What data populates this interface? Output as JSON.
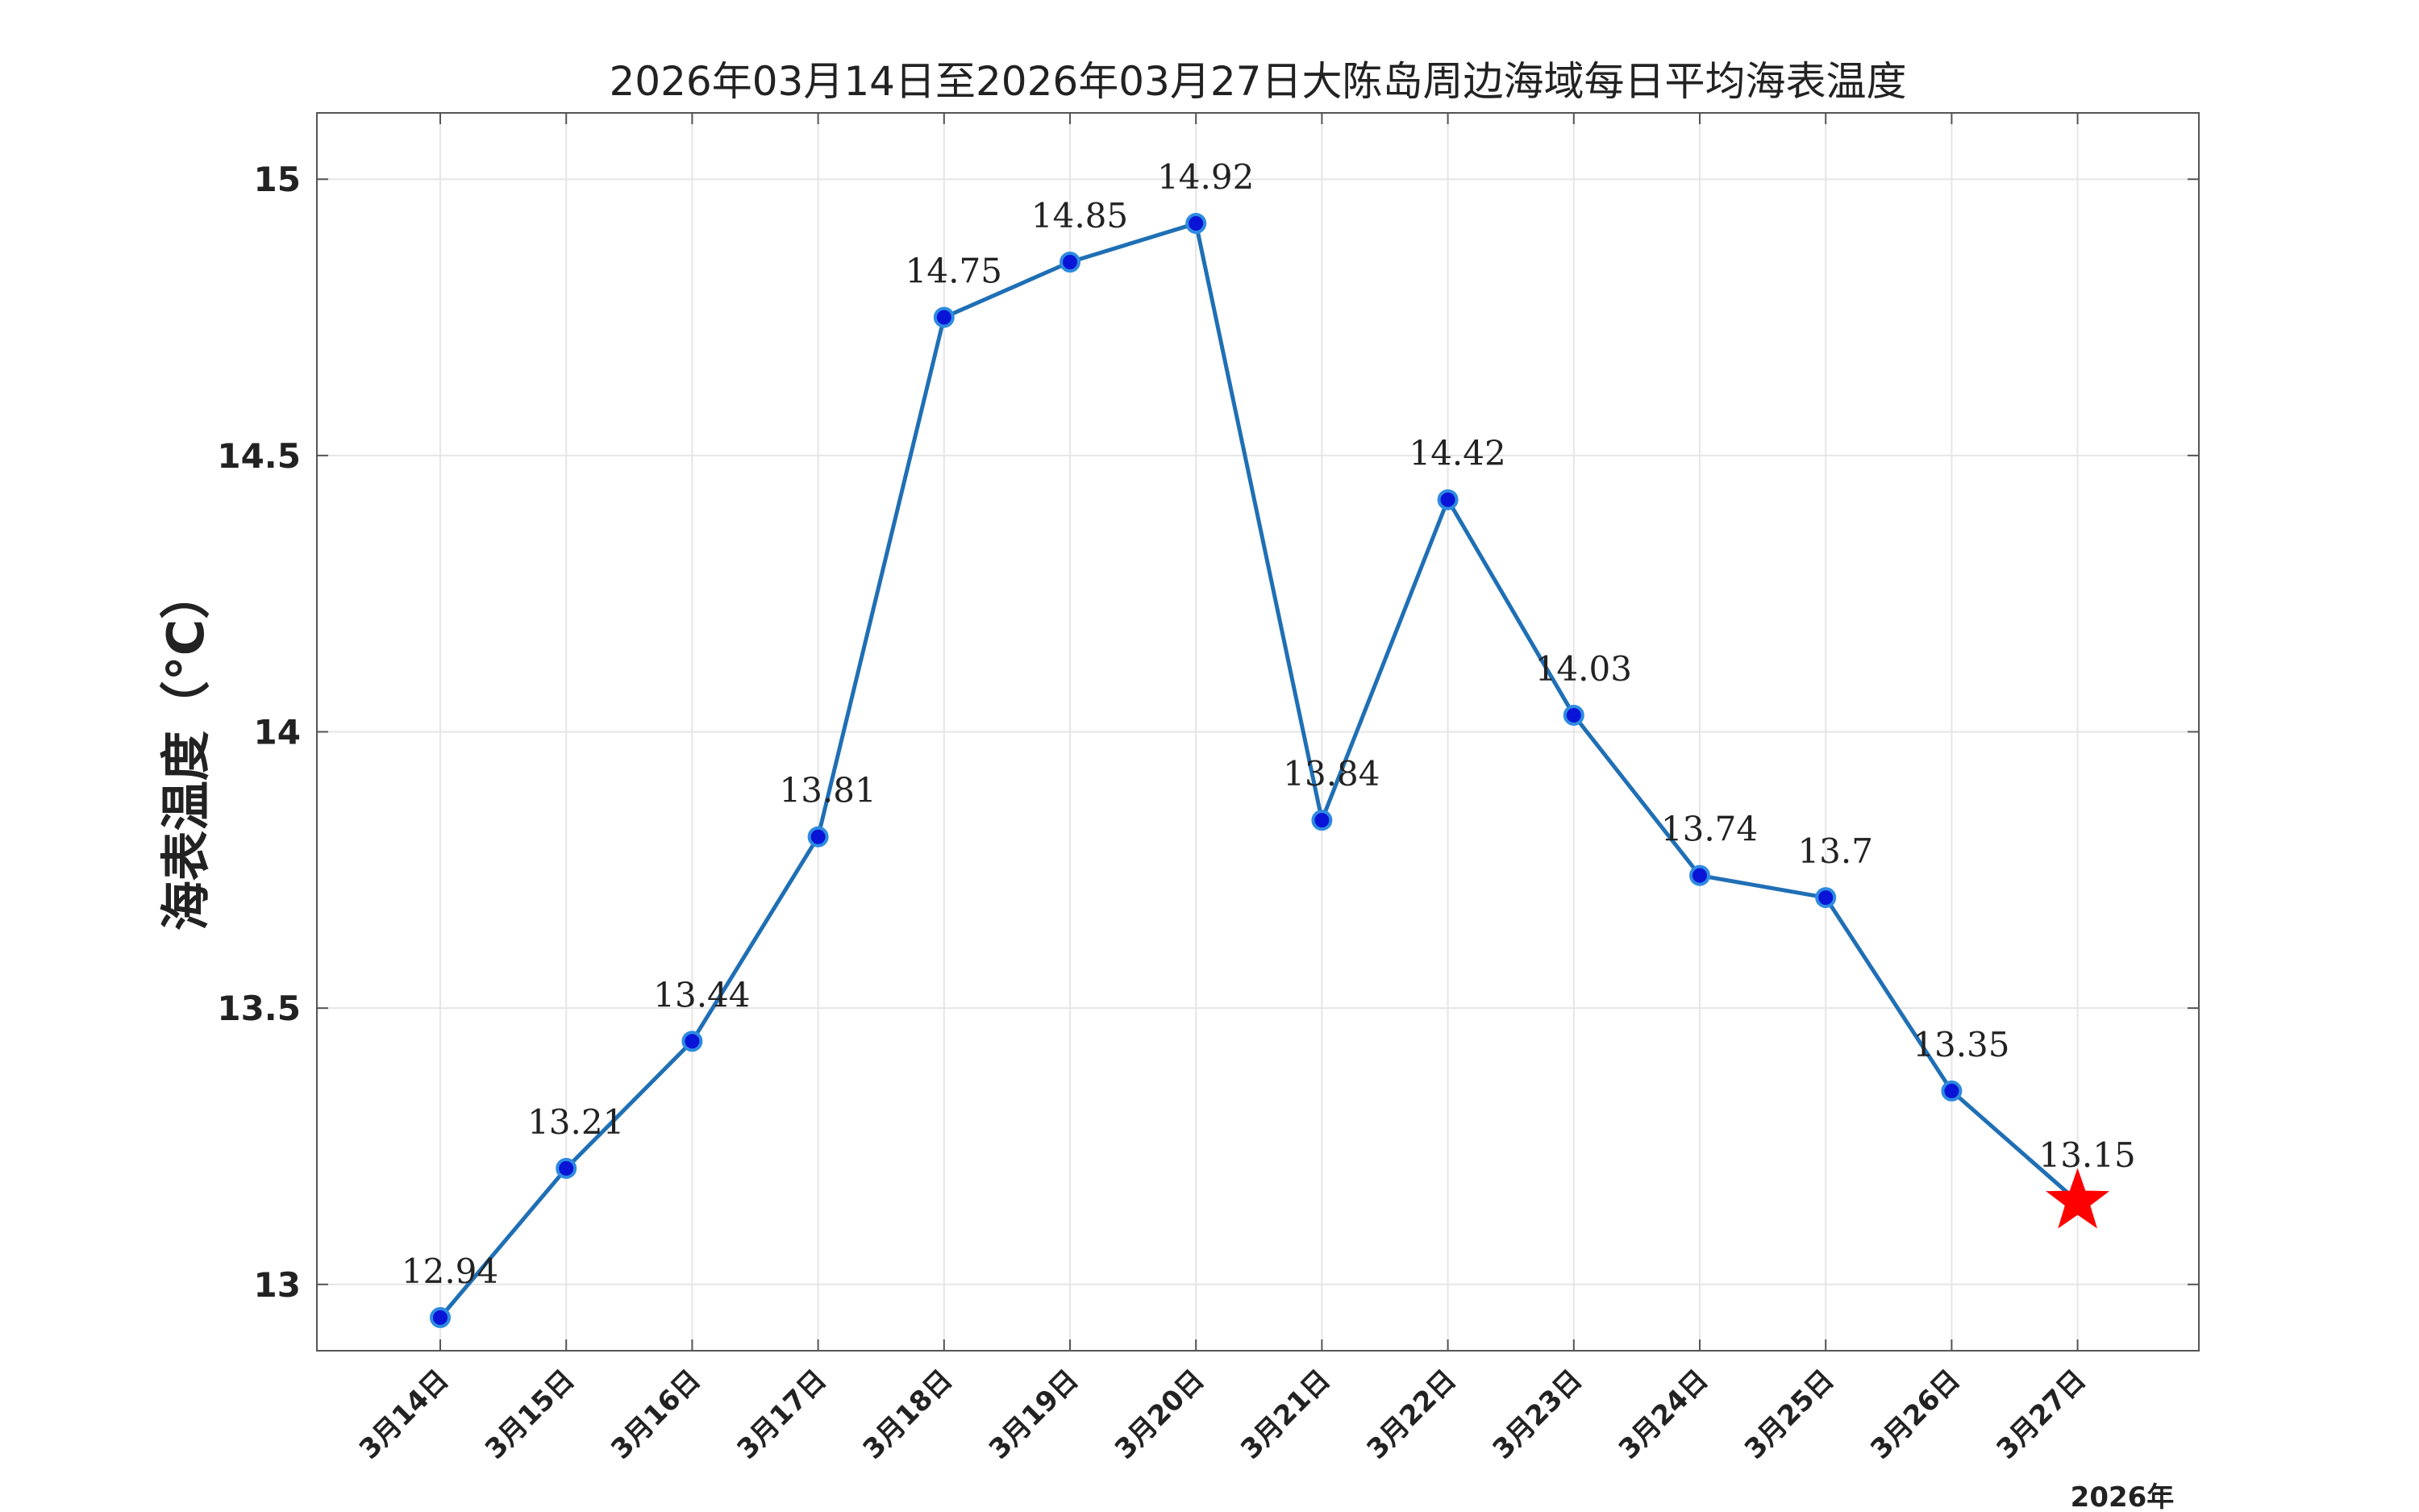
{
  "chart_data": {
    "type": "line",
    "title": "2026年03月14日至2026年03月27日大陈岛周边海域每日平均海表温度",
    "xlabel": "",
    "ylabel": "海表温度（°C）",
    "categories": [
      "3月14日",
      "3月15日",
      "3月16日",
      "3月17日",
      "3月18日",
      "3月19日",
      "3月20日",
      "3月21日",
      "3月22日",
      "3月23日",
      "3月24日",
      "3月25日",
      "3月26日",
      "3月27日"
    ],
    "series": [
      {
        "values": [
          12.94,
          13.21,
          13.44,
          13.81,
          14.75,
          14.85,
          14.92,
          13.84,
          14.42,
          14.03,
          13.74,
          13.7,
          13.35,
          13.15
        ],
        "data_labels": [
          "12.94",
          "13.21",
          "13.44",
          "13.81",
          "14.75",
          "14.85",
          "14.92",
          "13.84",
          "14.42",
          "14.03",
          "13.74",
          "13.7",
          "13.35",
          "13.15"
        ]
      }
    ],
    "ylim": [
      12.88,
      15.12
    ],
    "yticks": [
      13,
      13.5,
      14,
      14.5,
      15
    ],
    "ytick_labels": [
      "13",
      "13.5",
      "14",
      "14.5",
      "15"
    ],
    "x_secondary_label": "2026年",
    "grid": true,
    "last_point_marker": "star",
    "colors": {
      "line": "#1f6fb5",
      "marker_fill": "#0a14d6",
      "marker_edge": "#2e8be0",
      "star": "#ff0000",
      "grid": "#e6e6e6",
      "axes": "#555555"
    }
  }
}
